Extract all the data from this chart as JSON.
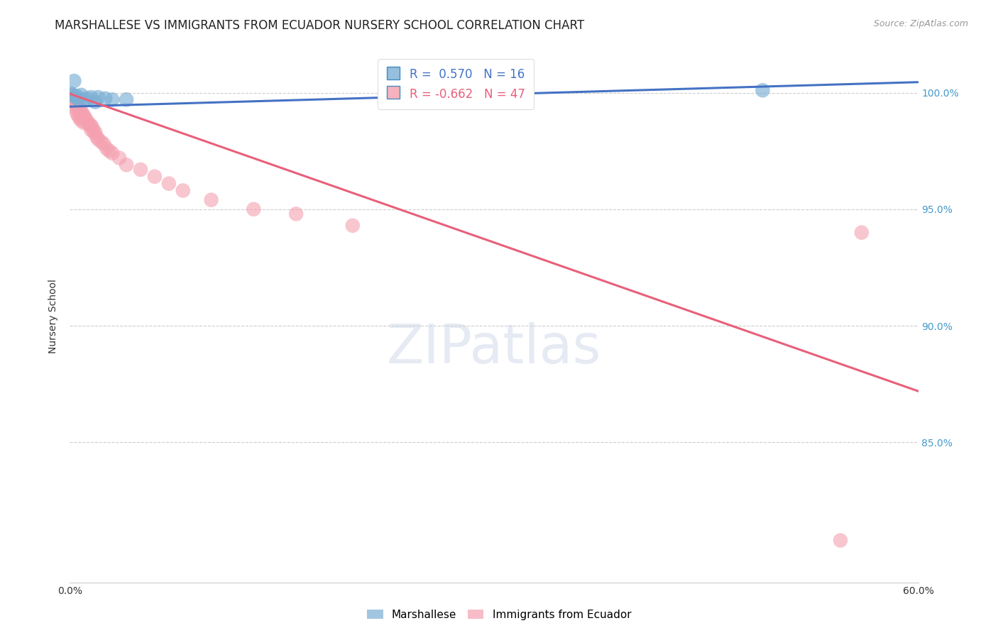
{
  "title": "MARSHALLESE VS IMMIGRANTS FROM ECUADOR NURSERY SCHOOL CORRELATION CHART",
  "source": "Source: ZipAtlas.com",
  "ylabel": "Nursery School",
  "xlim": [
    0.0,
    0.6
  ],
  "ylim": [
    0.79,
    1.018
  ],
  "yticks": [
    0.85,
    0.9,
    0.95,
    1.0
  ],
  "ytick_labels": [
    "85.0%",
    "90.0%",
    "95.0%",
    "100.0%"
  ],
  "xticks": [
    0.0,
    0.1,
    0.2,
    0.3,
    0.4,
    0.5,
    0.6
  ],
  "xtick_labels": [
    "0.0%",
    "",
    "",
    "",
    "",
    "",
    "60.0%"
  ],
  "blue_R": 0.57,
  "blue_N": 16,
  "pink_R": -0.662,
  "pink_N": 47,
  "blue_color": "#7BAFD4",
  "pink_color": "#F4A0B0",
  "blue_line_color": "#4472C4",
  "pink_line_color": "#E8607A",
  "blue_points_x": [
    0.001,
    0.002,
    0.003,
    0.004,
    0.005,
    0.006,
    0.008,
    0.01,
    0.012,
    0.015,
    0.018,
    0.02,
    0.025,
    0.03,
    0.04,
    0.49
  ],
  "blue_points_y": [
    0.9995,
    0.999,
    1.005,
    0.998,
    0.9985,
    0.997,
    0.999,
    0.997,
    0.9975,
    0.998,
    0.996,
    0.998,
    0.9975,
    0.997,
    0.997,
    1.001
  ],
  "pink_points_x": [
    0.001,
    0.001,
    0.002,
    0.002,
    0.003,
    0.003,
    0.004,
    0.004,
    0.005,
    0.005,
    0.006,
    0.006,
    0.007,
    0.007,
    0.008,
    0.008,
    0.009,
    0.01,
    0.01,
    0.011,
    0.012,
    0.013,
    0.014,
    0.015,
    0.015,
    0.016,
    0.017,
    0.018,
    0.019,
    0.02,
    0.022,
    0.024,
    0.026,
    0.028,
    0.03,
    0.035,
    0.04,
    0.05,
    0.06,
    0.07,
    0.08,
    0.1,
    0.13,
    0.16,
    0.2,
    0.545,
    0.56
  ],
  "pink_points_y": [
    0.999,
    0.997,
    0.9975,
    0.996,
    0.9965,
    0.9945,
    0.996,
    0.993,
    0.995,
    0.991,
    0.994,
    0.99,
    0.993,
    0.989,
    0.992,
    0.988,
    0.991,
    0.99,
    0.987,
    0.989,
    0.988,
    0.987,
    0.986,
    0.986,
    0.984,
    0.985,
    0.983,
    0.983,
    0.981,
    0.98,
    0.979,
    0.978,
    0.976,
    0.975,
    0.974,
    0.972,
    0.969,
    0.967,
    0.964,
    0.961,
    0.958,
    0.954,
    0.95,
    0.948,
    0.943,
    0.808,
    0.94
  ],
  "blue_line_x": [
    0.0,
    0.6
  ],
  "blue_line_y": [
    0.994,
    1.0045
  ],
  "pink_line_x": [
    0.0,
    0.6
  ],
  "pink_line_y": [
    0.9995,
    0.872
  ],
  "legend_label_blue": "Marshallese",
  "legend_label_pink": "Immigrants from Ecuador",
  "title_fontsize": 12,
  "axis_label_fontsize": 10,
  "tick_fontsize": 10,
  "source_fontsize": 9
}
